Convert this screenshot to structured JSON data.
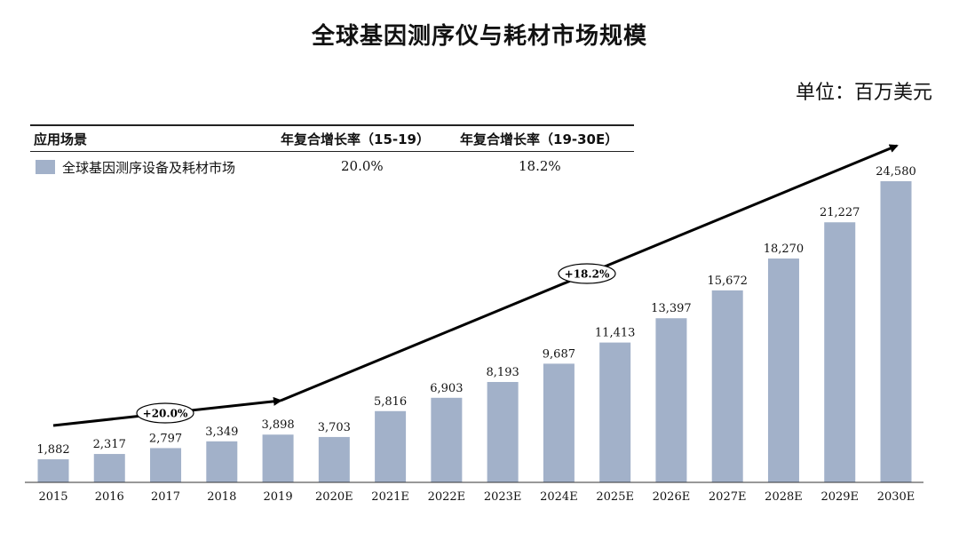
{
  "title": "全球基因测序仪与耗材市场规模",
  "unit": "单位：百万美元",
  "legend_table": {
    "headers": [
      "应用场景",
      "年复合增长率（15-19）",
      "年复合增长率（19-30E）"
    ],
    "row": {
      "label": "全球基因测序设备及耗材市场",
      "cagr_15_19": "20.0%",
      "cagr_19_30": "18.2%"
    }
  },
  "chart_data": {
    "type": "bar",
    "title": "全球基因测序仪与耗材市场规模",
    "categories": [
      "2015",
      "2016",
      "2017",
      "2018",
      "2019",
      "2020E",
      "2021E",
      "2022E",
      "2023E",
      "2024E",
      "2025E",
      "2026E",
      "2027E",
      "2028E",
      "2029E",
      "2030E"
    ],
    "series": [
      {
        "name": "全球基因测序设备及耗材市场",
        "values": [
          1882,
          2317,
          2797,
          3349,
          3898,
          3703,
          5816,
          6903,
          8193,
          9687,
          11413,
          13397,
          15672,
          18270,
          21227,
          24580
        ],
        "labels": [
          "1,882",
          "2,317",
          "2,797",
          "3,349",
          "3,898",
          "3,703",
          "5,816",
          "6,903",
          "8,193",
          "9,687",
          "11,413",
          "13,397",
          "15,672",
          "18,270",
          "21,227",
          "24,580"
        ]
      }
    ],
    "annotations": [
      {
        "text": "+20.0%",
        "from": "2015",
        "to": "2019"
      },
      {
        "text": "+18.2%",
        "from": "2019",
        "to": "2030E"
      }
    ],
    "ylim": [
      0,
      24580
    ],
    "grid": false,
    "bar_color": "#a2b1c9",
    "legend": "top-left"
  }
}
